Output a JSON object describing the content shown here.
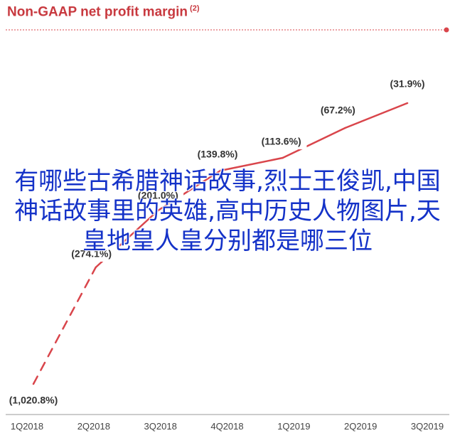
{
  "title": "Non-GAAP net profit margin",
  "title_footnote": "(2)",
  "overlay_caption": "有哪些古希腊神话故事,烈士王俊凯,中国神话故事里的英雄,高中历史人物图片,天皇地皇人皇分别都是哪三位",
  "colors": {
    "title": "#c8393f",
    "line": "#d9454b",
    "caption": "#1432c8",
    "label": "#333333"
  },
  "chart_data": {
    "type": "line",
    "categories": [
      "1Q2018",
      "2Q2018",
      "3Q2018",
      "4Q2018",
      "1Q2019",
      "2Q2019",
      "3Q2019"
    ],
    "series": [
      {
        "values": [
          -1020.8,
          -274.1,
          -201.0,
          -139.8,
          -113.6,
          -67.2,
          -31.9
        ],
        "labels": [
          "(1,020.8%)",
          "(274.1%)",
          "(201.0%)",
          "(139.8%)",
          "(113.6%)",
          "(67.2%)",
          "(31.9%)"
        ],
        "segment_styles": [
          "dashed",
          "solid",
          "solid",
          "solid",
          "solid",
          "solid"
        ]
      }
    ],
    "ylim": [
      -1100,
      0
    ],
    "grid": false,
    "legend": "none"
  }
}
